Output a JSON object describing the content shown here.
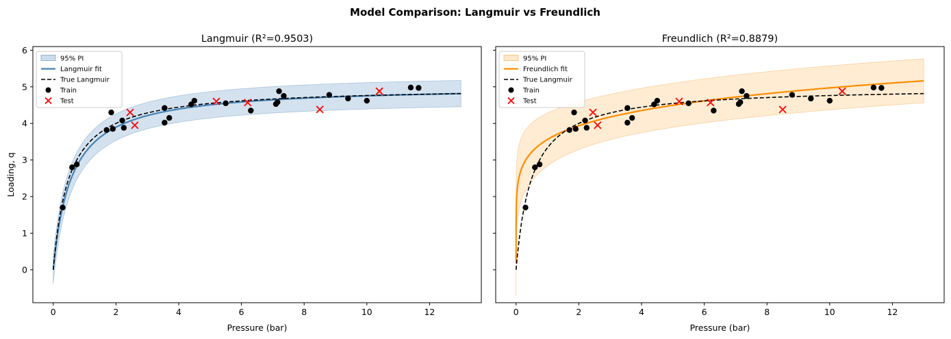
{
  "figure": {
    "suptitle": "Model Comparison: Langmuir vs Freundlich"
  },
  "chart_data": [
    {
      "type": "line",
      "title": "Langmuir  (R²=0.9503)",
      "xlabel": "Pressure (bar)",
      "ylabel": "Loading, q",
      "xlim": [
        -0.65,
        13.65
      ],
      "ylim": [
        -0.9,
        6.1
      ],
      "xticks": [
        0,
        2,
        4,
        6,
        8,
        10,
        12
      ],
      "yticks": [
        0,
        1,
        2,
        3,
        4,
        5,
        6
      ],
      "show_ytick_labels": true,
      "legend_position": "upper-left",
      "legend": [
        "95% PI",
        "Langmuir fit",
        "True Langmuir",
        "Train",
        "Test"
      ],
      "colors": {
        "fit": "#4682b4",
        "band": "#a9c6e0",
        "band_edge": "#7ea6cc",
        "true": "#000000",
        "train": "#000000",
        "test": "#ff0000"
      },
      "fit_model": {
        "kind": "langmuir",
        "qmax": 5.03,
        "K": 1.72
      },
      "band_width": {
        "at_x0": 0.38,
        "far": 0.36,
        "min": 0.3
      },
      "true_model": {
        "kind": "langmuir",
        "qmax": 5.0,
        "K": 2.0
      },
      "x_range": [
        0,
        13
      ]
    },
    {
      "type": "line",
      "title": "Freundlich  (R²=0.8879)",
      "xlabel": "Pressure (bar)",
      "ylabel": "",
      "xlim": [
        -0.65,
        13.65
      ],
      "ylim": [
        -0.9,
        6.1
      ],
      "xticks": [
        0,
        2,
        4,
        6,
        8,
        10,
        12
      ],
      "yticks": [
        0,
        1,
        2,
        3,
        4,
        5,
        6
      ],
      "show_ytick_labels": false,
      "legend_position": "upper-left",
      "legend": [
        "95% PI",
        "Freundlich fit",
        "True Langmuir",
        "Train",
        "Test"
      ],
      "colors": {
        "fit": "#ff8c00",
        "band": "#ffd9a8",
        "band_edge": "#f5b870",
        "true": "#000000",
        "train": "#000000",
        "test": "#ff0000"
      },
      "fit_model": {
        "kind": "freundlich",
        "K": 3.56,
        "n": 0.145
      },
      "band_width": {
        "at_x0": 0.9,
        "far": 0.6,
        "min": 0.55
      },
      "true_model": {
        "kind": "langmuir",
        "qmax": 5.0,
        "K": 2.0
      },
      "x_range": [
        0,
        13
      ]
    }
  ],
  "points": {
    "train": [
      [
        0.3,
        1.7
      ],
      [
        0.6,
        2.8
      ],
      [
        0.75,
        2.88
      ],
      [
        1.7,
        3.82
      ],
      [
        1.85,
        4.3
      ],
      [
        1.9,
        3.85
      ],
      [
        2.2,
        4.08
      ],
      [
        2.25,
        3.88
      ],
      [
        3.55,
        4.02
      ],
      [
        3.55,
        4.42
      ],
      [
        3.7,
        4.15
      ],
      [
        4.4,
        4.52
      ],
      [
        4.5,
        4.62
      ],
      [
        5.5,
        4.55
      ],
      [
        6.3,
        4.35
      ],
      [
        7.1,
        4.53
      ],
      [
        7.15,
        4.58
      ],
      [
        7.2,
        4.88
      ],
      [
        7.35,
        4.75
      ],
      [
        8.8,
        4.78
      ],
      [
        9.4,
        4.68
      ],
      [
        10.0,
        4.62
      ],
      [
        11.4,
        4.98
      ],
      [
        11.65,
        4.97
      ]
    ],
    "test": [
      [
        2.45,
        4.3
      ],
      [
        2.6,
        3.95
      ],
      [
        5.2,
        4.6
      ],
      [
        6.2,
        4.57
      ],
      [
        8.5,
        4.38
      ],
      [
        10.4,
        4.88
      ]
    ]
  }
}
